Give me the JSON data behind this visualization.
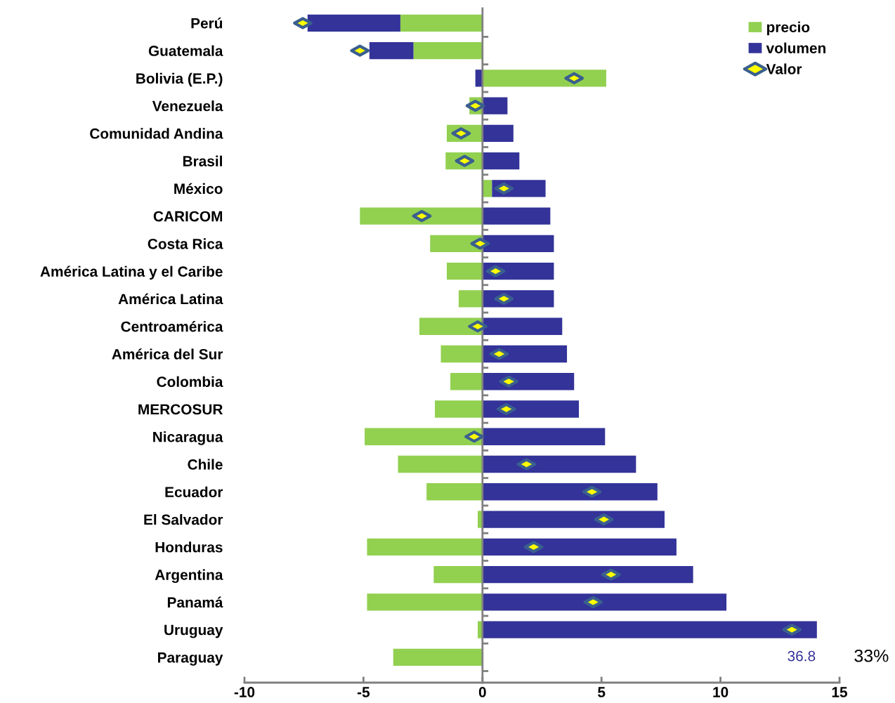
{
  "chart_data": {
    "type": "bar",
    "orientation": "horizontal",
    "stacked": true,
    "categories": [
      "Perú",
      "Guatemala",
      "Bolivia (E.P.)",
      "Venezuela",
      "Comunidad Andina",
      "Brasil",
      "México",
      "CARICOM",
      "Costa Rica",
      "América Latina y el Caribe",
      "América Latina",
      "Centroamérica",
      "América del Sur",
      "Colombia",
      "MERCOSUR",
      "Nicaragua",
      "Chile",
      "Ecuador",
      "El Salvador",
      "Honduras",
      "Argentina",
      "Panamá",
      "Uruguay",
      "Paraguay"
    ],
    "series": [
      {
        "name": "precio",
        "color": "#92d050",
        "values": [
          -3.45,
          -2.9,
          5.2,
          -0.55,
          -1.5,
          -1.55,
          0.4,
          -5.15,
          -2.2,
          -1.5,
          -1.0,
          -2.65,
          -1.75,
          -1.35,
          -2.0,
          -4.95,
          -3.55,
          -2.35,
          -0.2,
          -4.85,
          -2.05,
          -4.85,
          -0.2,
          -3.75
        ]
      },
      {
        "name": "volumen",
        "color": "#333399",
        "values": [
          -3.9,
          -1.85,
          -0.3,
          1.05,
          1.3,
          1.55,
          2.25,
          2.85,
          3.0,
          3.0,
          3.0,
          3.35,
          3.55,
          3.85,
          4.05,
          5.15,
          6.45,
          7.35,
          7.65,
          8.15,
          8.85,
          10.25,
          14.05,
          null
        ]
      },
      {
        "name": "Valor",
        "type": "scatter",
        "marker": "diamond",
        "color": "#ffff00",
        "values": [
          -7.55,
          -5.15,
          3.85,
          -0.3,
          -0.9,
          -0.75,
          0.9,
          -2.55,
          -0.1,
          0.55,
          0.9,
          -0.2,
          0.7,
          1.1,
          1.0,
          -0.35,
          1.85,
          4.6,
          5.1,
          2.15,
          5.4,
          4.65,
          13.0,
          null
        ]
      }
    ],
    "annotations": [
      "36.8",
      "33%"
    ],
    "xlim": [
      -10,
      15
    ],
    "xticks": [
      {
        "value": -10,
        "label": "-10"
      },
      {
        "value": -5,
        "label": "-5"
      },
      0,
      5,
      10,
      15
    ],
    "legend": "top right"
  }
}
